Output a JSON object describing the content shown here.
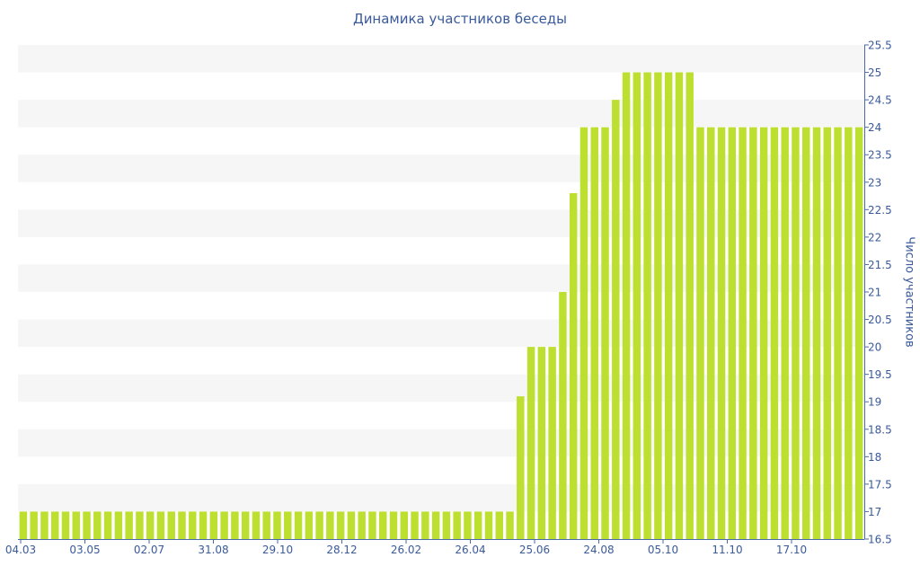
{
  "chart_data": {
    "type": "bar",
    "title": "Динамика участников беседы",
    "xlabel": "",
    "ylabel": "Число участников",
    "ylim": [
      16.5,
      25.5
    ],
    "y_ticks": [
      "16.5",
      "17",
      "17.5",
      "18",
      "18.5",
      "19",
      "19.5",
      "20",
      "20.5",
      "21",
      "21.5",
      "22",
      "22.5",
      "23",
      "23.5",
      "24",
      "24.5",
      "25",
      "25.5"
    ],
    "x_tick_labels": [
      "04.03",
      "03.05",
      "02.07",
      "31.08",
      "29.10",
      "28.12",
      "26.02",
      "26.04",
      "25.06",
      "24.08",
      "05.10",
      "11.10",
      "17.10"
    ],
    "grid": "alternating horizontal bands",
    "bar_color": "#bde030",
    "values": [
      17,
      17,
      17,
      17,
      17,
      17,
      17,
      17,
      17,
      17,
      17,
      17,
      17,
      17,
      17,
      17,
      17,
      17,
      17,
      17,
      17,
      17,
      17,
      17,
      17,
      17,
      17,
      17,
      17,
      17,
      17,
      17,
      17,
      17,
      17,
      17,
      17,
      17,
      17,
      17,
      17,
      17,
      17,
      17,
      17,
      17,
      17,
      19.1,
      20,
      20,
      20,
      21,
      22.8,
      24,
      24,
      24,
      24.5,
      25,
      25,
      25,
      25,
      25,
      25,
      25,
      24,
      24,
      24,
      24,
      24,
      24,
      24,
      24,
      24,
      24,
      24,
      24,
      24,
      24,
      24,
      24
    ]
  }
}
